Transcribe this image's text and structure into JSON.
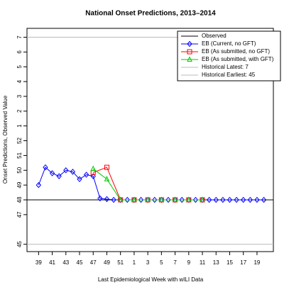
{
  "chart_data": {
    "type": "line",
    "title": "National Onset Predictions, 2013–2014",
    "xlabel": "Last Epidemiological Week with wILI Data",
    "ylabel": "Onset Predictions, Observed Value",
    "xlim": [
      37.3,
      73.4
    ],
    "xticks": [
      39,
      41,
      43,
      45,
      47,
      49,
      51,
      {
        "value": 53,
        "label": "1"
      },
      {
        "value": 55,
        "label": "3"
      },
      {
        "value": 57,
        "label": "5"
      },
      {
        "value": 59,
        "label": "7"
      },
      {
        "value": 61,
        "label": "9"
      },
      {
        "value": 63,
        "label": "11"
      },
      {
        "value": 65,
        "label": "13"
      },
      {
        "value": 67,
        "label": "15"
      },
      {
        "value": 69,
        "label": "17"
      },
      {
        "value": 71,
        "label": "19"
      }
    ],
    "ylim": [
      44.5,
      59.6
    ],
    "yticks": [
      45,
      47,
      48,
      49,
      50,
      51,
      52,
      {
        "value": 53,
        "label": "1"
      },
      {
        "value": 54,
        "label": "2"
      },
      {
        "value": 55,
        "label": "3"
      },
      {
        "value": 56,
        "label": "4"
      },
      {
        "value": 57,
        "label": "5"
      },
      {
        "value": 58,
        "label": "6"
      },
      {
        "value": 59,
        "label": "7"
      }
    ],
    "reference_lines": [
      {
        "name": "Observed",
        "color": "#000000",
        "value": 48
      },
      {
        "name": "Historical Latest:  7",
        "color": "#bbbbbb",
        "value": 59
      },
      {
        "name": "Historical Earliest:  45",
        "color": "#bbbbbb",
        "value": 45
      }
    ],
    "series": [
      {
        "name": "EB (Current, no GFT)",
        "color": "#0000ff",
        "marker": "diamond",
        "x": [
          39,
          40,
          41,
          42,
          43,
          44,
          45,
          46,
          47,
          48,
          49,
          50,
          51,
          52,
          53,
          54,
          55,
          56,
          57,
          58,
          59,
          60,
          61,
          62,
          63,
          64,
          65,
          66,
          67,
          68,
          69,
          70,
          71,
          72
        ],
        "values": [
          49,
          50.2,
          49.8,
          49.6,
          50,
          49.9,
          49.4,
          49.7,
          49.6,
          48.1,
          48.05,
          48,
          48,
          48,
          48,
          48,
          48,
          48,
          48,
          48,
          48,
          48,
          48,
          48,
          48,
          48,
          48,
          48,
          48,
          48,
          48,
          48,
          48,
          48
        ]
      },
      {
        "name": "EB (As submitted, no GFT)",
        "color": "#ff0000",
        "marker": "square",
        "x": [
          47,
          49,
          51,
          53,
          55,
          57,
          59,
          61,
          63
        ],
        "values": [
          49.85,
          50.2,
          48,
          48,
          48,
          48,
          48,
          48,
          48
        ]
      },
      {
        "name": "EB (As submitted, with GFT)",
        "color": "#00cc00",
        "marker": "triangle",
        "x": [
          47,
          49,
          51,
          53,
          55,
          57,
          59,
          61,
          63
        ],
        "values": [
          50.1,
          49.4,
          48,
          48,
          48,
          48,
          48,
          48,
          48
        ]
      }
    ]
  }
}
